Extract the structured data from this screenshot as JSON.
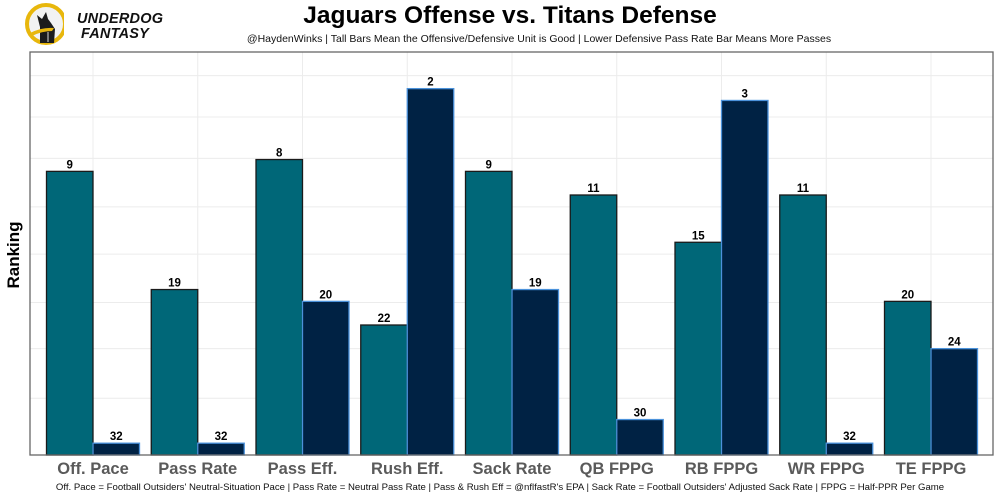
{
  "logo": {
    "line1": "UNDERDOG",
    "line2": "FANTASY",
    "icon": "underdog-dog-icon",
    "ring_color": "#E8B70C"
  },
  "chart_data": {
    "type": "bar",
    "title": "Jaguars Offense vs. Titans Defense",
    "subtitle": "@HaydenWinks | Tall Bars Mean the Offensive/Defensive Unit is Good | Lower Defensive Pass Rate Bar Means More Passes",
    "xlabel": "",
    "ylabel": "Ranking",
    "caption": "Off. Pace = Football Outsiders' Neutral-Situation Pace | Pass Rate = Neutral Pass Rate | Pass & Rush Eff = @nflfastR's EPA | Sack Rate = Football Outsiders' Adjusted Sack Rate | FPPG = Half-PPR Per Game",
    "categories": [
      "Off. Pace",
      "Pass Rate",
      "Pass Eff.",
      "Rush Eff.",
      "Sack Rate",
      "QB FPPG",
      "RB FPPG",
      "WR FPPG",
      "TE FPPG"
    ],
    "bar_height_rule": "height = 33 - rank",
    "series": [
      {
        "name": "Jaguars Offense",
        "color": "#006778",
        "border": "#1a1a1a",
        "ranks": [
          9,
          19,
          8,
          22,
          9,
          11,
          15,
          11,
          20
        ]
      },
      {
        "name": "Titans Defense",
        "color": "#002244",
        "border": "#4B92DB",
        "ranks": [
          32,
          32,
          20,
          2,
          19,
          30,
          3,
          32,
          24
        ]
      }
    ],
    "ylim": [
      0,
      34.1
    ],
    "y_ticks_shown": false,
    "grid": true,
    "legend": "none"
  }
}
